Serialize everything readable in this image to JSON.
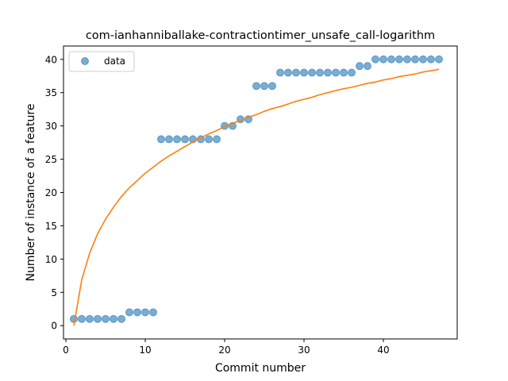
{
  "chart_data": {
    "type": "scatter",
    "title": "com-ianhanniballake-contractiontimer_unsafe_call-logarithm",
    "xlabel": "Commit number",
    "ylabel": "Number of instance of a feature",
    "xlim": [
      -0.3,
      49.3
    ],
    "ylim": [
      -2,
      42
    ],
    "xticks": [
      0,
      10,
      20,
      30,
      40
    ],
    "yticks": [
      0,
      5,
      10,
      15,
      20,
      25,
      30,
      35,
      40
    ],
    "grid": false,
    "legend": {
      "position": "top-left",
      "entries": [
        "data"
      ]
    },
    "series": [
      {
        "name": "data",
        "kind": "scatter",
        "color": "#1f77b4",
        "x": [
          1,
          2,
          3,
          4,
          5,
          6,
          7,
          8,
          9,
          10,
          11,
          12,
          13,
          14,
          15,
          16,
          17,
          18,
          19,
          20,
          21,
          22,
          23,
          24,
          25,
          26,
          27,
          28,
          29,
          30,
          31,
          32,
          33,
          34,
          35,
          36,
          37,
          38,
          39,
          40,
          41,
          42,
          43,
          44,
          45,
          46,
          47
        ],
        "y": [
          1,
          1,
          1,
          1,
          1,
          1,
          1,
          2,
          2,
          2,
          2,
          28,
          28,
          28,
          28,
          28,
          28,
          28,
          28,
          30,
          30,
          31,
          31,
          36,
          36,
          36,
          38,
          38,
          38,
          38,
          38,
          38,
          38,
          38,
          38,
          38,
          39,
          39,
          40,
          40,
          40,
          40,
          40,
          40,
          40,
          40,
          40
        ]
      },
      {
        "kind": "line",
        "color": "#ff7f0e",
        "x": [
          1,
          2,
          3,
          4,
          5,
          6,
          7,
          8,
          9,
          10,
          11,
          12,
          13,
          14,
          15,
          16,
          17,
          18,
          19,
          20,
          21,
          22,
          23,
          24,
          25,
          26,
          27,
          28,
          29,
          30,
          31,
          32,
          33,
          34,
          35,
          36,
          37,
          38,
          39,
          40,
          41,
          42,
          43,
          44,
          45,
          46,
          47
        ],
        "y": [
          0.0,
          6.9,
          10.9,
          13.8,
          16.0,
          17.8,
          19.4,
          20.7,
          21.8,
          22.9,
          23.8,
          24.7,
          25.5,
          26.2,
          26.9,
          27.6,
          28.2,
          28.8,
          29.3,
          29.9,
          30.4,
          30.8,
          31.3,
          31.7,
          32.2,
          32.6,
          32.9,
          33.3,
          33.7,
          34.0,
          34.3,
          34.7,
          35.0,
          35.3,
          35.6,
          35.8,
          36.1,
          36.4,
          36.6,
          36.9,
          37.1,
          37.4,
          37.6,
          37.8,
          38.1,
          38.3,
          38.5
        ]
      }
    ]
  }
}
